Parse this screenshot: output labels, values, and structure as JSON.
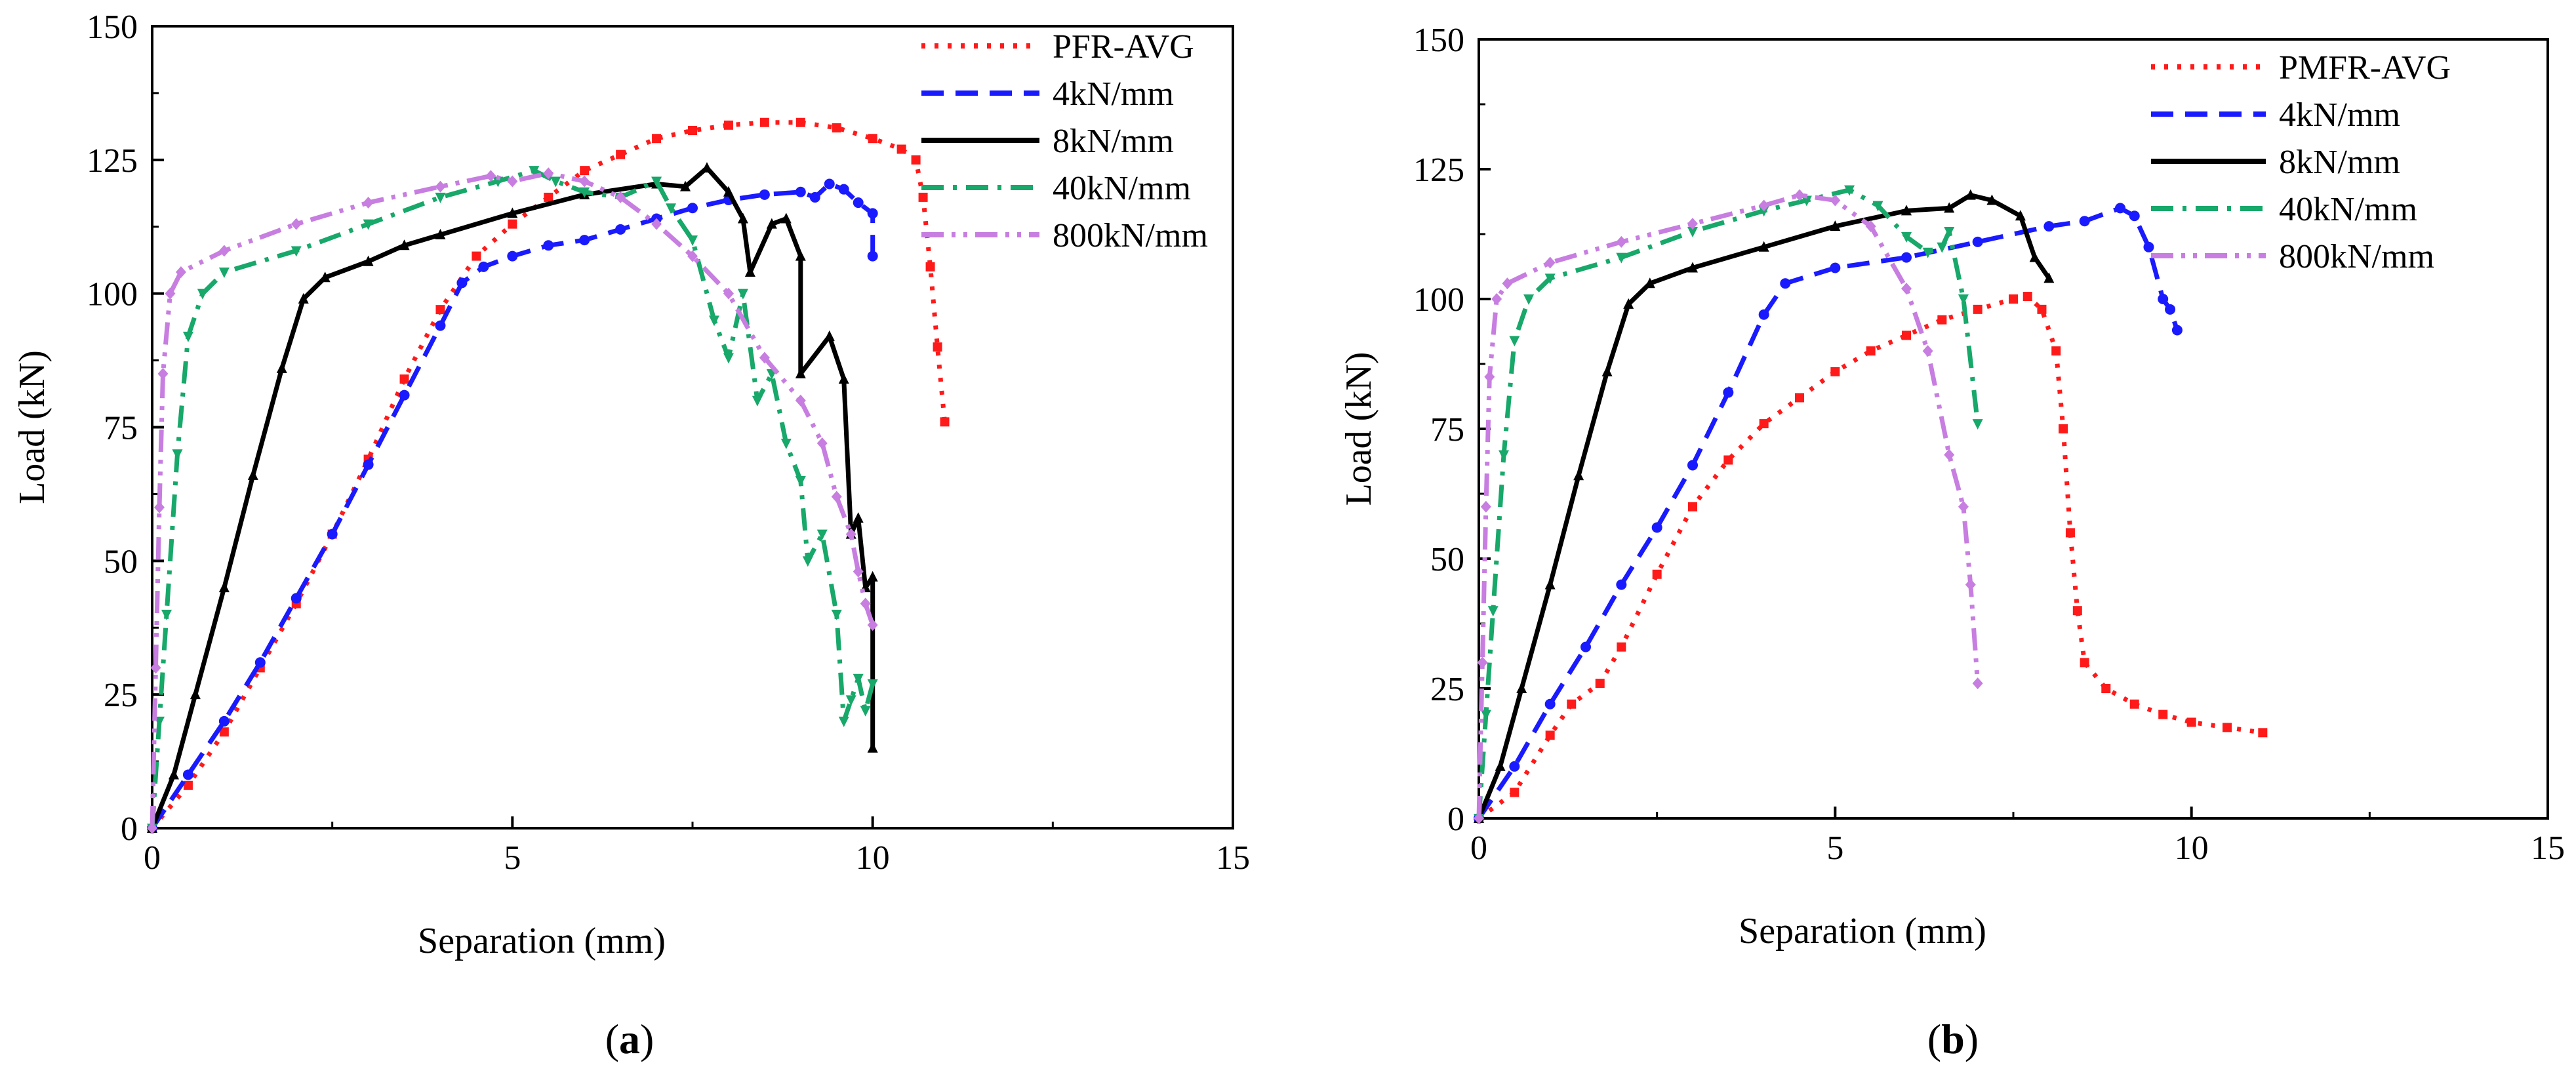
{
  "figure": {
    "panel_labels": [
      {
        "open": "(",
        "letter": "a",
        "close": ")"
      },
      {
        "open": "(",
        "letter": "b",
        "close": ")"
      }
    ]
  },
  "colors": {
    "red": "#ff1a1a",
    "blue": "#1a1aff",
    "black": "#000000",
    "green": "#17a86a",
    "purple": "#c77ee0"
  },
  "chart_data": [
    {
      "type": "line",
      "panel": "(a)",
      "xlabel": "Separation (mm)",
      "ylabel": "Load (kN)",
      "xlim": [
        0,
        15
      ],
      "ylim": [
        0,
        150
      ],
      "xticks": [
        0,
        5,
        10,
        15
      ],
      "yticks": [
        0,
        25,
        50,
        75,
        100,
        125,
        150
      ],
      "legend_position": "top-right",
      "series": [
        {
          "name": "PFR-AVG",
          "color": "#ff1a1a",
          "dash": "dot",
          "marker": "square",
          "points": [
            [
              0,
              0
            ],
            [
              0.5,
              8
            ],
            [
              1,
              18
            ],
            [
              1.5,
              30
            ],
            [
              2,
              42
            ],
            [
              2.5,
              55
            ],
            [
              3,
              69
            ],
            [
              3.5,
              84
            ],
            [
              4,
              97
            ],
            [
              4.5,
              107
            ],
            [
              5,
              113
            ],
            [
              5.5,
              118
            ],
            [
              6,
              123
            ],
            [
              6.5,
              126
            ],
            [
              7,
              129
            ],
            [
              7.5,
              130.5
            ],
            [
              8,
              131.5
            ],
            [
              8.5,
              132
            ],
            [
              9,
              132
            ],
            [
              9.5,
              131
            ],
            [
              10,
              129
            ],
            [
              10.4,
              127
            ],
            [
              10.6,
              125
            ],
            [
              10.7,
              118
            ],
            [
              10.8,
              105
            ],
            [
              10.9,
              90
            ],
            [
              11,
              76
            ]
          ]
        },
        {
          "name": "4kN/mm",
          "color": "#1a1aff",
          "dash": "dash",
          "marker": "circle",
          "points": [
            [
              0,
              0
            ],
            [
              0.5,
              10
            ],
            [
              1,
              20
            ],
            [
              1.5,
              31
            ],
            [
              2,
              43
            ],
            [
              2.5,
              55
            ],
            [
              3,
              68
            ],
            [
              3.5,
              81
            ],
            [
              4,
              94
            ],
            [
              4.3,
              102
            ],
            [
              4.6,
              105
            ],
            [
              5,
              107
            ],
            [
              5.5,
              109
            ],
            [
              6,
              110
            ],
            [
              6.5,
              112
            ],
            [
              7,
              114
            ],
            [
              7.5,
              116
            ],
            [
              8,
              117.5
            ],
            [
              8.5,
              118.5
            ],
            [
              9,
              119
            ],
            [
              9.2,
              118
            ],
            [
              9.4,
              120.5
            ],
            [
              9.6,
              119.5
            ],
            [
              9.8,
              117
            ],
            [
              10,
              115
            ],
            [
              10,
              107
            ]
          ]
        },
        {
          "name": "8kN/mm",
          "color": "#000000",
          "dash": "solid",
          "marker": "triangle",
          "points": [
            [
              0,
              0
            ],
            [
              0.3,
              10
            ],
            [
              0.6,
              25
            ],
            [
              1,
              45
            ],
            [
              1.4,
              66
            ],
            [
              1.8,
              86
            ],
            [
              2.1,
              99
            ],
            [
              2.4,
              103
            ],
            [
              3,
              106
            ],
            [
              3.5,
              109
            ],
            [
              4,
              111
            ],
            [
              5,
              115
            ],
            [
              6,
              118.5
            ],
            [
              7,
              120.5
            ],
            [
              7.4,
              120
            ],
            [
              7.7,
              123.5
            ],
            [
              8,
              119
            ],
            [
              8.2,
              114
            ],
            [
              8.3,
              104
            ],
            [
              8.6,
              113
            ],
            [
              8.8,
              114
            ],
            [
              9,
              107
            ],
            [
              9,
              85
            ],
            [
              9.4,
              92
            ],
            [
              9.6,
              84
            ],
            [
              9.7,
              55
            ],
            [
              9.8,
              58
            ],
            [
              9.9,
              45
            ],
            [
              10,
              47
            ],
            [
              10,
              15
            ]
          ]
        },
        {
          "name": "40kN/mm",
          "color": "#17a86a",
          "dash": "dashdot",
          "marker": "triangle-down",
          "points": [
            [
              0,
              0
            ],
            [
              0.1,
              20
            ],
            [
              0.2,
              40
            ],
            [
              0.35,
              70
            ],
            [
              0.5,
              92
            ],
            [
              0.7,
              100
            ],
            [
              1,
              104
            ],
            [
              2,
              108
            ],
            [
              3,
              113
            ],
            [
              4,
              118
            ],
            [
              4.8,
              121
            ],
            [
              5.3,
              123
            ],
            [
              5.6,
              121
            ],
            [
              6,
              119
            ],
            [
              6.5,
              118
            ],
            [
              7,
              121
            ],
            [
              7.2,
              116
            ],
            [
              7.5,
              110
            ],
            [
              7.8,
              95
            ],
            [
              8,
              88
            ],
            [
              8.2,
              100
            ],
            [
              8.4,
              80
            ],
            [
              8.6,
              85
            ],
            [
              8.8,
              72
            ],
            [
              9,
              65
            ],
            [
              9.1,
              50
            ],
            [
              9.3,
              55
            ],
            [
              9.5,
              40
            ],
            [
              9.6,
              20
            ],
            [
              9.7,
              24
            ],
            [
              9.8,
              28
            ],
            [
              9.9,
              22
            ],
            [
              10,
              27
            ]
          ]
        },
        {
          "name": "800kN/mm",
          "color": "#c77ee0",
          "dash": "dashdotdot",
          "marker": "diamond",
          "points": [
            [
              0,
              0
            ],
            [
              0.05,
              30
            ],
            [
              0.1,
              60
            ],
            [
              0.15,
              85
            ],
            [
              0.25,
              100
            ],
            [
              0.4,
              104
            ],
            [
              1,
              108
            ],
            [
              2,
              113
            ],
            [
              3,
              117
            ],
            [
              4,
              120
            ],
            [
              4.7,
              122
            ],
            [
              5,
              121
            ],
            [
              5.5,
              122.5
            ],
            [
              6,
              121
            ],
            [
              6.5,
              118
            ],
            [
              7,
              113
            ],
            [
              7.5,
              107
            ],
            [
              8,
              100
            ],
            [
              8.5,
              88
            ],
            [
              9,
              80
            ],
            [
              9.3,
              72
            ],
            [
              9.5,
              62
            ],
            [
              9.7,
              55
            ],
            [
              9.8,
              48
            ],
            [
              9.9,
              42
            ],
            [
              10,
              38
            ]
          ]
        }
      ]
    },
    {
      "type": "line",
      "panel": "(b)",
      "xlabel": "Separation (mm)",
      "ylabel": "Load (kN)",
      "xlim": [
        0,
        15
      ],
      "ylim": [
        0,
        150
      ],
      "xticks": [
        0,
        5,
        10,
        15
      ],
      "yticks": [
        0,
        25,
        50,
        75,
        100,
        125,
        150
      ],
      "legend_position": "top-right",
      "series": [
        {
          "name": "PMFR-AVG",
          "color": "#ff1a1a",
          "dash": "dot",
          "marker": "square",
          "points": [
            [
              0,
              0
            ],
            [
              0.5,
              5
            ],
            [
              1,
              16
            ],
            [
              1.3,
              22
            ],
            [
              1.7,
              26
            ],
            [
              2,
              33
            ],
            [
              2.5,
              47
            ],
            [
              3,
              60
            ],
            [
              3.5,
              69
            ],
            [
              4,
              76
            ],
            [
              4.5,
              81
            ],
            [
              5,
              86
            ],
            [
              5.5,
              90
            ],
            [
              6,
              93
            ],
            [
              6.5,
              96
            ],
            [
              7,
              98
            ],
            [
              7.5,
              100
            ],
            [
              7.7,
              100.5
            ],
            [
              7.9,
              98
            ],
            [
              8.1,
              90
            ],
            [
              8.2,
              75
            ],
            [
              8.3,
              55
            ],
            [
              8.4,
              40
            ],
            [
              8.5,
              30
            ],
            [
              8.8,
              25
            ],
            [
              9.2,
              22
            ],
            [
              9.6,
              20
            ],
            [
              10,
              18.5
            ],
            [
              10.5,
              17.5
            ],
            [
              11,
              16.5
            ]
          ]
        },
        {
          "name": "4kN/mm",
          "color": "#1a1aff",
          "dash": "dash",
          "marker": "circle",
          "points": [
            [
              0,
              0
            ],
            [
              0.5,
              10
            ],
            [
              1,
              22
            ],
            [
              1.5,
              33
            ],
            [
              2,
              45
            ],
            [
              2.5,
              56
            ],
            [
              3,
              68
            ],
            [
              3.5,
              82
            ],
            [
              4,
              97
            ],
            [
              4.3,
              103
            ],
            [
              5,
              106
            ],
            [
              6,
              108
            ],
            [
              7,
              111
            ],
            [
              8,
              114
            ],
            [
              8.5,
              115
            ],
            [
              9,
              117.5
            ],
            [
              9.2,
              116
            ],
            [
              9.4,
              110
            ],
            [
              9.6,
              100
            ],
            [
              9.7,
              98
            ],
            [
              9.8,
              94
            ]
          ]
        },
        {
          "name": "8kN/mm",
          "color": "#000000",
          "dash": "solid",
          "marker": "triangle",
          "points": [
            [
              0,
              0
            ],
            [
              0.3,
              10
            ],
            [
              0.6,
              25
            ],
            [
              1,
              45
            ],
            [
              1.4,
              66
            ],
            [
              1.8,
              86
            ],
            [
              2.1,
              99
            ],
            [
              2.4,
              103
            ],
            [
              3,
              106
            ],
            [
              4,
              110
            ],
            [
              5,
              114
            ],
            [
              6,
              117
            ],
            [
              6.6,
              117.5
            ],
            [
              6.9,
              120
            ],
            [
              7.2,
              119
            ],
            [
              7.6,
              116
            ],
            [
              7.8,
              108
            ],
            [
              8,
              104
            ]
          ]
        },
        {
          "name": "40kN/mm",
          "color": "#17a86a",
          "dash": "dashdot",
          "marker": "triangle-down",
          "points": [
            [
              0,
              0
            ],
            [
              0.1,
              20
            ],
            [
              0.2,
              40
            ],
            [
              0.35,
              70
            ],
            [
              0.5,
              92
            ],
            [
              0.7,
              100
            ],
            [
              1,
              104
            ],
            [
              2,
              108
            ],
            [
              3,
              113
            ],
            [
              4,
              117
            ],
            [
              4.6,
              119
            ],
            [
              5.2,
              121
            ],
            [
              5.6,
              118
            ],
            [
              6,
              112
            ],
            [
              6.3,
              109
            ],
            [
              6.5,
              110
            ],
            [
              6.6,
              113
            ],
            [
              6.8,
              100
            ],
            [
              7,
              76
            ]
          ]
        },
        {
          "name": "800kN/mm",
          "color": "#c77ee0",
          "dash": "dashdotdot",
          "marker": "diamond",
          "points": [
            [
              0,
              0
            ],
            [
              0.05,
              30
            ],
            [
              0.1,
              60
            ],
            [
              0.15,
              85
            ],
            [
              0.25,
              100
            ],
            [
              0.4,
              103
            ],
            [
              1,
              107
            ],
            [
              2,
              111
            ],
            [
              3,
              114.5
            ],
            [
              4,
              118
            ],
            [
              4.5,
              120
            ],
            [
              5,
              119
            ],
            [
              5.5,
              114
            ],
            [
              6,
              102
            ],
            [
              6.3,
              90
            ],
            [
              6.6,
              70
            ],
            [
              6.8,
              60
            ],
            [
              6.9,
              45
            ],
            [
              7,
              26
            ]
          ]
        }
      ]
    }
  ]
}
